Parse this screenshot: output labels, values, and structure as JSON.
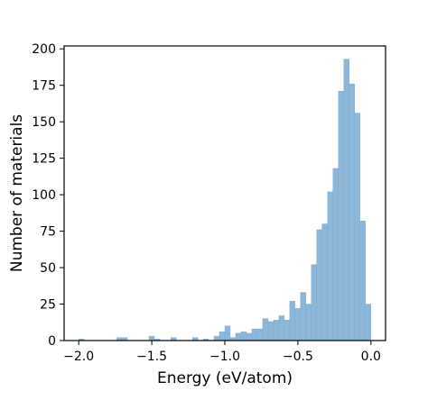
{
  "chart_data": {
    "type": "bar",
    "title": "",
    "xlabel": "Energy (eV/atom)",
    "ylabel": "Number of materials",
    "xlim": [
      -2.1,
      0.1
    ],
    "ylim": [
      0,
      202
    ],
    "grid": false,
    "bar_color": "#8db7d9",
    "bar_edge_color": "#7aa7cd",
    "x_ticks": [
      {
        "value": -2.0,
        "label": "−2.0"
      },
      {
        "value": -1.5,
        "label": "−1.5"
      },
      {
        "value": -1.0,
        "label": "−1.0"
      },
      {
        "value": -0.5,
        "label": "−0.5"
      },
      {
        "value": 0.0,
        "label": "0.0"
      }
    ],
    "y_ticks": [
      {
        "value": 0,
        "label": "0"
      },
      {
        "value": 25,
        "label": "25"
      },
      {
        "value": 50,
        "label": "50"
      },
      {
        "value": 75,
        "label": "75"
      },
      {
        "value": 100,
        "label": "100"
      },
      {
        "value": 125,
        "label": "125"
      },
      {
        "value": 150,
        "label": "150"
      },
      {
        "value": 175,
        "label": "175"
      },
      {
        "value": 200,
        "label": "200"
      }
    ],
    "bins": [
      {
        "x0": -2.0,
        "x1": -1.963,
        "count": 1
      },
      {
        "x0": -1.741,
        "x1": -1.704,
        "count": 2
      },
      {
        "x0": -1.704,
        "x1": -1.667,
        "count": 2
      },
      {
        "x0": -1.519,
        "x1": -1.482,
        "count": 3
      },
      {
        "x0": -1.482,
        "x1": -1.445,
        "count": 1
      },
      {
        "x0": -1.37,
        "x1": -1.333,
        "count": 2
      },
      {
        "x0": -1.222,
        "x1": -1.185,
        "count": 2
      },
      {
        "x0": -1.148,
        "x1": -1.111,
        "count": 1
      },
      {
        "x0": -1.074,
        "x1": -1.037,
        "count": 3
      },
      {
        "x0": -1.037,
        "x1": -1.0,
        "count": 6
      },
      {
        "x0": -1.0,
        "x1": -0.963,
        "count": 10
      },
      {
        "x0": -0.963,
        "x1": -0.926,
        "count": 2
      },
      {
        "x0": -0.926,
        "x1": -0.889,
        "count": 5
      },
      {
        "x0": -0.889,
        "x1": -0.852,
        "count": 6
      },
      {
        "x0": -0.852,
        "x1": -0.815,
        "count": 5
      },
      {
        "x0": -0.815,
        "x1": -0.778,
        "count": 8
      },
      {
        "x0": -0.778,
        "x1": -0.741,
        "count": 8
      },
      {
        "x0": -0.741,
        "x1": -0.704,
        "count": 15
      },
      {
        "x0": -0.704,
        "x1": -0.667,
        "count": 13
      },
      {
        "x0": -0.667,
        "x1": -0.63,
        "count": 14
      },
      {
        "x0": -0.63,
        "x1": -0.593,
        "count": 17
      },
      {
        "x0": -0.593,
        "x1": -0.556,
        "count": 14
      },
      {
        "x0": -0.556,
        "x1": -0.519,
        "count": 27
      },
      {
        "x0": -0.519,
        "x1": -0.482,
        "count": 22
      },
      {
        "x0": -0.482,
        "x1": -0.445,
        "count": 33
      },
      {
        "x0": -0.445,
        "x1": -0.408,
        "count": 25
      },
      {
        "x0": -0.408,
        "x1": -0.371,
        "count": 52
      },
      {
        "x0": -0.371,
        "x1": -0.334,
        "count": 76
      },
      {
        "x0": -0.334,
        "x1": -0.297,
        "count": 80
      },
      {
        "x0": -0.297,
        "x1": -0.26,
        "count": 102
      },
      {
        "x0": -0.26,
        "x1": -0.223,
        "count": 118
      },
      {
        "x0": -0.223,
        "x1": -0.186,
        "count": 171
      },
      {
        "x0": -0.186,
        "x1": -0.149,
        "count": 193
      },
      {
        "x0": -0.149,
        "x1": -0.112,
        "count": 176
      },
      {
        "x0": -0.112,
        "x1": -0.075,
        "count": 156
      },
      {
        "x0": -0.075,
        "x1": -0.038,
        "count": 82
      },
      {
        "x0": -0.038,
        "x1": -0.001,
        "count": 25
      }
    ]
  }
}
